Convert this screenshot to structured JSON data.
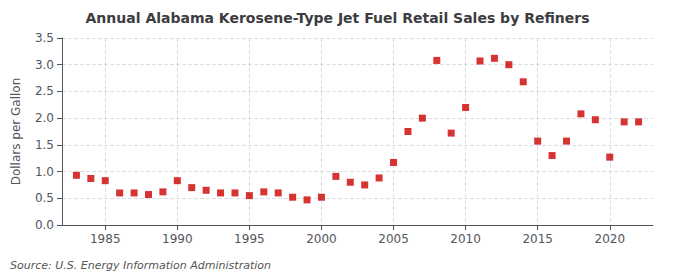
{
  "chart_data": {
    "type": "scatter",
    "title": "Annual Alabama Kerosene-Type Jet Fuel Retail Sales by Refiners",
    "ylabel": "Dollars per Gallon",
    "annotations": [
      "Source: U.S. Energy Information Administration"
    ],
    "x": [
      1983,
      1984,
      1985,
      1986,
      1987,
      1988,
      1989,
      1990,
      1991,
      1992,
      1993,
      1994,
      1995,
      1996,
      1997,
      1998,
      1999,
      2000,
      2001,
      2002,
      2003,
      2004,
      2005,
      2006,
      2007,
      2008,
      2009,
      2010,
      2011,
      2012,
      2013,
      2014,
      2015,
      2016,
      2017,
      2018,
      2019,
      2020,
      2021,
      2022
    ],
    "values": [
      0.93,
      0.87,
      0.83,
      0.6,
      0.6,
      0.57,
      0.62,
      0.83,
      0.7,
      0.65,
      0.6,
      0.6,
      0.55,
      0.62,
      0.6,
      0.52,
      0.47,
      0.52,
      0.91,
      0.8,
      0.75,
      0.88,
      1.17,
      1.75,
      2.0,
      3.08,
      1.72,
      2.2,
      3.07,
      3.12,
      3.0,
      2.68,
      1.57,
      1.3,
      1.57,
      2.08,
      1.97,
      1.27,
      1.93,
      1.93
    ],
    "color": "#cc0000",
    "marker": "square",
    "xlim": [
      1982,
      2023
    ],
    "xticks": [
      1985,
      1990,
      1995,
      2000,
      2005,
      2010,
      2015,
      2020
    ],
    "ylim": [
      0.0,
      3.5
    ],
    "yticks": [
      {
        "value": 0,
        "label": "0.0"
      },
      0.5,
      {
        "value": 1,
        "label": "1.0"
      },
      1.5,
      {
        "value": 2,
        "label": "2.0"
      },
      2.5,
      {
        "value": 3,
        "label": "3.0"
      },
      3.5
    ],
    "grid": true
  }
}
